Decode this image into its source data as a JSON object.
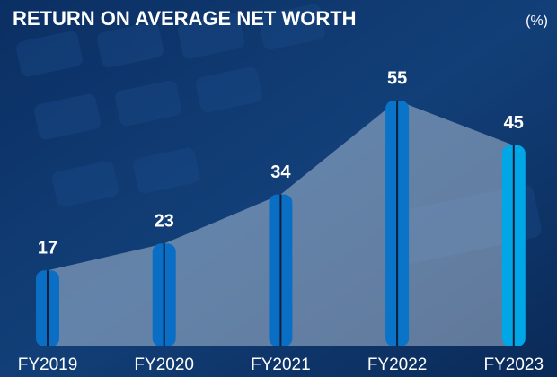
{
  "chart_data": {
    "type": "bar",
    "title": "RETURN ON AVERAGE NET WORTH",
    "unit_label": "(%)",
    "categories": [
      "FY2019",
      "FY2020",
      "FY2021",
      "FY2022",
      "FY2023"
    ],
    "values": [
      17,
      23,
      34,
      55,
      45
    ],
    "colors": [
      "#0a6fc4",
      "#0a6fc4",
      "#0a6fc4",
      "#0a74c8",
      "#00a6e6"
    ]
  }
}
